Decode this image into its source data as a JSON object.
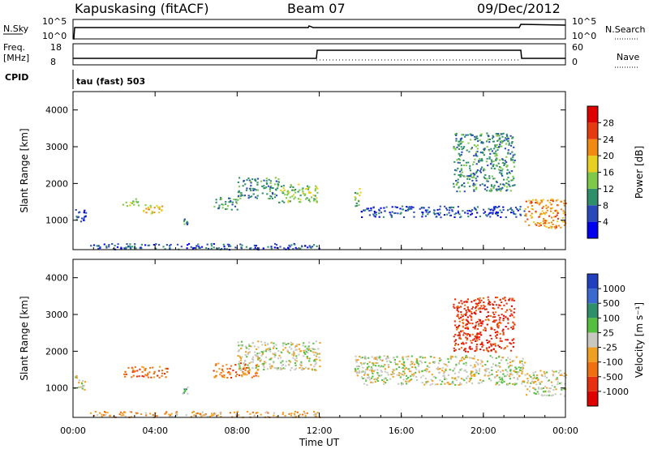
{
  "header": {
    "station": "Kapuskasing (fitACF)",
    "beam": "Beam 07",
    "date": "09/Dec/2012"
  },
  "top_panels": {
    "nsky_label": "N.Sky",
    "nsky_ticks": [
      "10^5",
      "10^0"
    ],
    "nsearch_label": "N.Search",
    "nsearch_ticks": [
      "10^5",
      "10^0"
    ],
    "freq_label_1": "Freq.",
    "freq_label_2": "[MHz]",
    "freq_ticks": [
      "18",
      "8"
    ],
    "nave_label": "Nave",
    "nave_ticks": [
      "60",
      "0"
    ],
    "cpid_label": "CPID",
    "cpid_value": "tau (fast) 503"
  },
  "chart_data": [
    {
      "type": "heatmap",
      "name": "power",
      "ylabel": "Slant Range [km]",
      "ylim": [
        200,
        4500
      ],
      "yticks": [
        "1000",
        "2000",
        "3000",
        "4000"
      ],
      "xlim": [
        0,
        24
      ],
      "colorbar_label": "Power [dB]",
      "colorbar_ticks": [
        "4",
        "8",
        "12",
        "16",
        "20",
        "24",
        "28"
      ],
      "colors": [
        "#0000ee",
        "#2a49b8",
        "#2f8f6a",
        "#7ec84a",
        "#e8d020",
        "#f08a10",
        "#e83a10",
        "#e00000"
      ],
      "regions": [
        {
          "t0": 0.0,
          "t1": 0.6,
          "r0": 950,
          "r1": 1350,
          "level": 1
        },
        {
          "t0": 2.4,
          "t1": 3.2,
          "r0": 1380,
          "r1": 1600,
          "level": 3
        },
        {
          "t0": 3.4,
          "t1": 4.5,
          "r0": 1200,
          "r1": 1450,
          "level": 4
        },
        {
          "t0": 5.3,
          "t1": 5.6,
          "r0": 900,
          "r1": 1050,
          "level": 2
        },
        {
          "t0": 6.8,
          "t1": 8.0,
          "r0": 1300,
          "r1": 1650,
          "level": 2
        },
        {
          "t0": 8.0,
          "t1": 10.0,
          "r0": 1600,
          "r1": 2200,
          "level": 2
        },
        {
          "t0": 10.0,
          "t1": 12.0,
          "r0": 1500,
          "r1": 2000,
          "level": 3
        },
        {
          "t0": 13.7,
          "t1": 14.0,
          "r0": 1300,
          "r1": 1900,
          "level": 3
        },
        {
          "t0": 14.0,
          "t1": 22.0,
          "r0": 1100,
          "r1": 1400,
          "level": 1
        },
        {
          "t0": 18.5,
          "t1": 21.5,
          "r0": 1800,
          "r1": 3400,
          "level": 2
        },
        {
          "t0": 22.0,
          "t1": 24.0,
          "r0": 800,
          "r1": 1600,
          "level": 5
        },
        {
          "t0": 0.8,
          "t1": 12.0,
          "r0": 220,
          "r1": 380,
          "level": 1
        }
      ]
    },
    {
      "type": "heatmap",
      "name": "velocity",
      "ylabel": "Slant Range [km]",
      "ylim": [
        200,
        4500
      ],
      "yticks": [
        "1000",
        "2000",
        "3000",
        "4000"
      ],
      "xlim": [
        0,
        24
      ],
      "xticks": [
        "00:00",
        "04:00",
        "08:00",
        "12:00",
        "16:00",
        "20:00",
        "00:00"
      ],
      "xlabel": "Time UT",
      "colorbar_label": "Velocity [m s⁻¹]",
      "colorbar_ticks": [
        "1000",
        "500",
        "100",
        "25",
        "-25",
        "-100",
        "-500",
        "-1000"
      ],
      "colors": [
        "#2040c0",
        "#3a6ad0",
        "#2f8f6a",
        "#55c040",
        "#c8c8c0",
        "#f0a020",
        "#f07010",
        "#e83010",
        "#e00000"
      ],
      "regions": [
        {
          "t0": 0.0,
          "t1": 0.6,
          "r0": 950,
          "r1": 1350,
          "level": 4
        },
        {
          "t0": 2.4,
          "t1": 4.6,
          "r0": 1300,
          "r1": 1600,
          "level": 6
        },
        {
          "t0": 5.3,
          "t1": 5.6,
          "r0": 850,
          "r1": 1050,
          "level": 3
        },
        {
          "t0": 6.8,
          "t1": 9.0,
          "r0": 1300,
          "r1": 1700,
          "level": 6
        },
        {
          "t0": 8.0,
          "t1": 12.0,
          "r0": 1500,
          "r1": 2300,
          "level": 4
        },
        {
          "t0": 13.7,
          "t1": 14.2,
          "r0": 1300,
          "r1": 1900,
          "level": 4
        },
        {
          "t0": 14.0,
          "t1": 22.0,
          "r0": 1100,
          "r1": 1900,
          "level": 4
        },
        {
          "t0": 18.5,
          "t1": 21.5,
          "r0": 2000,
          "r1": 3500,
          "level": 7
        },
        {
          "t0": 22.0,
          "t1": 24.0,
          "r0": 800,
          "r1": 1500,
          "level": 4
        },
        {
          "t0": 0.8,
          "t1": 12.0,
          "r0": 220,
          "r1": 380,
          "level": 5
        }
      ]
    }
  ]
}
